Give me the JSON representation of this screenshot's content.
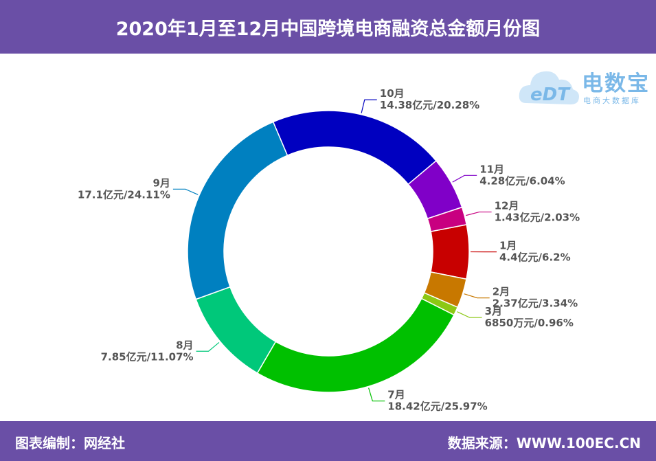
{
  "header": {
    "title": "2020年1月至12月中国跨境电商融资总金额月份图"
  },
  "footer": {
    "left_text": "图表编制：网经社",
    "right_text": "数据来源：WWW.100EC.CN"
  },
  "logo": {
    "brand": "电数宝",
    "sub": "电商大数据库",
    "mark": "eDT",
    "icon": "cloud-logo-icon",
    "color": "#7ab8e8"
  },
  "chart_data": {
    "type": "pie",
    "style": "donut",
    "unit": "亿元",
    "slices": [
      {
        "month": "1月",
        "value": 4.4,
        "percent": 6.2,
        "label": "4.4亿元/6.2%",
        "color": "#c80000"
      },
      {
        "month": "2月",
        "value": 2.37,
        "percent": 3.34,
        "label": "2.37亿元/3.34%",
        "color": "#c87800"
      },
      {
        "month": "3月",
        "value": 0.685,
        "percent": 0.96,
        "label": "6850万元/0.96%",
        "color": "#8cc814"
      },
      {
        "month": "7月",
        "value": 18.42,
        "percent": 25.97,
        "label": "18.42亿元/25.97%",
        "color": "#00c000"
      },
      {
        "month": "8月",
        "value": 7.85,
        "percent": 11.07,
        "label": "7.85亿元/11.07%",
        "color": "#00c87a"
      },
      {
        "month": "9月",
        "value": 17.1,
        "percent": 24.11,
        "label": "17.1亿元/24.11%",
        "color": "#0080c0"
      },
      {
        "month": "10月",
        "value": 14.38,
        "percent": 20.28,
        "label": "14.38亿元/20.28%",
        "color": "#0000c0"
      },
      {
        "month": "11月",
        "value": 4.28,
        "percent": 6.04,
        "label": "4.28亿元/6.04%",
        "color": "#8000c8"
      },
      {
        "month": "12月",
        "value": 1.43,
        "percent": 2.03,
        "label": "1.43亿元/2.03%",
        "color": "#c80080"
      }
    ]
  }
}
